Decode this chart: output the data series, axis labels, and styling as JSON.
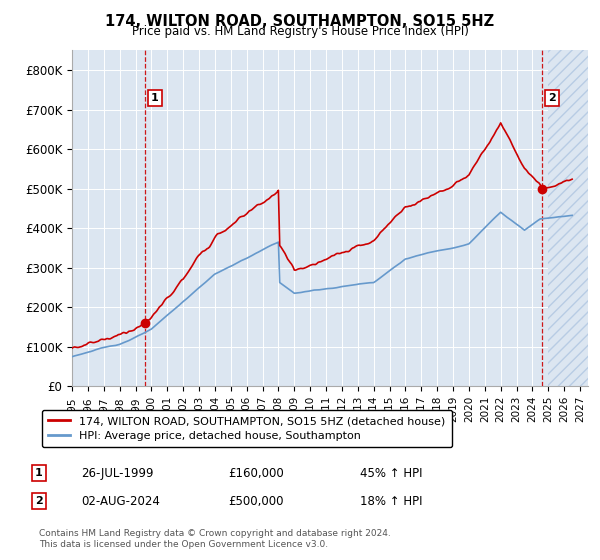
{
  "title": "174, WILTON ROAD, SOUTHAMPTON, SO15 5HZ",
  "subtitle": "Price paid vs. HM Land Registry's House Price Index (HPI)",
  "plot_bg_color": "#dce6f1",
  "ylim": [
    0,
    850000
  ],
  "yticks": [
    0,
    100000,
    200000,
    300000,
    400000,
    500000,
    600000,
    700000,
    800000
  ],
  "ytick_labels": [
    "£0",
    "£100K",
    "£200K",
    "£300K",
    "£400K",
    "£500K",
    "£600K",
    "£700K",
    "£800K"
  ],
  "xlim_start": 1995.0,
  "xlim_end": 2027.5,
  "xticks": [
    1995,
    1996,
    1997,
    1998,
    1999,
    2000,
    2001,
    2002,
    2003,
    2004,
    2005,
    2006,
    2007,
    2008,
    2009,
    2010,
    2011,
    2012,
    2013,
    2014,
    2015,
    2016,
    2017,
    2018,
    2019,
    2020,
    2021,
    2022,
    2023,
    2024,
    2025,
    2026,
    2027
  ],
  "legend_label_red": "174, WILTON ROAD, SOUTHAMPTON, SO15 5HZ (detached house)",
  "legend_label_blue": "HPI: Average price, detached house, Southampton",
  "transaction1_date": "26-JUL-1999",
  "transaction1_price": "£160,000",
  "transaction1_hpi": "45% ↑ HPI",
  "transaction2_date": "02-AUG-2024",
  "transaction2_price": "£500,000",
  "transaction2_hpi": "18% ↑ HPI",
  "footer": "Contains HM Land Registry data © Crown copyright and database right 2024.\nThis data is licensed under the Open Government Licence v3.0.",
  "red_line_color": "#cc0000",
  "blue_line_color": "#6699cc",
  "marker1_year": 1999.58,
  "marker1_value": 160000,
  "marker2_year": 2024.58,
  "marker2_value": 500000,
  "vline1_year": 1999.58,
  "vline2_year": 2024.58,
  "hatch_start": 2025.0
}
